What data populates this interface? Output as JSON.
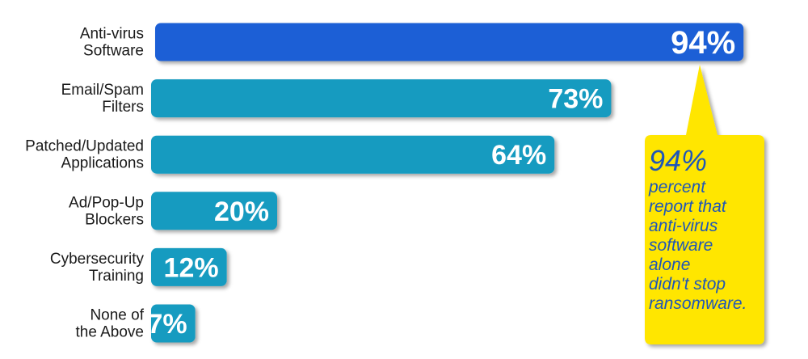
{
  "chart_data": {
    "type": "bar",
    "orientation": "horizontal",
    "categories": [
      [
        "Anti-virus",
        "Software"
      ],
      [
        "Email/Spam",
        "Filters"
      ],
      [
        "Patched/Updated",
        "Applications"
      ],
      [
        "Ad/Pop-Up",
        "Blockers"
      ],
      [
        "Cybersecurity",
        "Training"
      ],
      [
        "None of",
        "the Above"
      ]
    ],
    "values": [
      94,
      73,
      64,
      20,
      12,
      7
    ],
    "value_labels": [
      "94%",
      "73%",
      "64%",
      "20%",
      "12%",
      "7%"
    ],
    "highlight_index": 0,
    "xlim": [
      0,
      100
    ],
    "grid": false,
    "colors": {
      "highlight_bar": "#1a5fd6",
      "bar": "#129bc0",
      "highlight_value_text": "#ffe600",
      "value_text": "#ffffff",
      "callout_fill": "#ffe600",
      "callout_text": "#1f56b8"
    },
    "annotation": {
      "headline": "94%",
      "lines": [
        "percent",
        "report that",
        "anti-virus",
        "software",
        "alone",
        "didn't stop",
        "ransomware."
      ]
    }
  }
}
